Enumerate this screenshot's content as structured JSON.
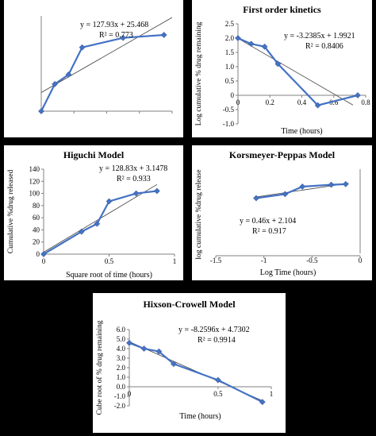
{
  "chart_data": [
    {
      "id": "zero",
      "type": "line",
      "title": "",
      "xlabel": "",
      "ylabel": "",
      "x": [
        0,
        0.083,
        0.167,
        0.25,
        0.5,
        0.75
      ],
      "y": [
        0,
        37,
        50,
        87,
        100,
        104
      ],
      "trendline": {
        "slope": 127.93,
        "intercept": 25.468
      },
      "equation": "y = 127.93x + 25.468",
      "r2": "R² = 0.773",
      "xlim": [
        0,
        0.8
      ],
      "ylim": [
        0,
        130
      ],
      "grid": false,
      "legend": "none"
    },
    {
      "id": "first",
      "type": "line",
      "title": "First order kinetics",
      "xlabel": "Time (hours)",
      "ylabel": "Log cumulative % drug remaining",
      "x": [
        0,
        0.083,
        0.167,
        0.25,
        0.5,
        0.75
      ],
      "y": [
        2.0,
        1.8,
        1.7,
        1.1,
        -0.35,
        0.0
      ],
      "trendline": {
        "slope": -3.2385,
        "intercept": 1.9921
      },
      "equation": "y = -3.2385x + 1.9921",
      "r2": "R² = 0.8406",
      "xlim": [
        0,
        0.8
      ],
      "ylim": [
        -1.0,
        2.5
      ],
      "xticks": [
        "0",
        "0.2",
        "0.4",
        "0.6",
        "0.8"
      ],
      "yticks": [
        "-1.0",
        "-0.5",
        "0",
        "0.5",
        "1.0",
        "1.5",
        "2.0",
        "2.5"
      ],
      "grid": false,
      "legend": "none"
    },
    {
      "id": "higuchi",
      "type": "line",
      "title": "Higuchi Model",
      "xlabel": "Square root of time (hours)",
      "ylabel": "Cumulative %drug released",
      "x": [
        0,
        0.289,
        0.408,
        0.5,
        0.707,
        0.866
      ],
      "y": [
        0,
        37,
        50,
        87,
        100,
        104
      ],
      "trendline": {
        "slope": 128.83,
        "intercept": 3.1478
      },
      "equation": "y = 128.83x + 3.1478",
      "r2": "R² = 0.933",
      "xlim": [
        0,
        1
      ],
      "ylim": [
        0,
        140
      ],
      "xticks": [
        "0",
        "0.5",
        "1"
      ],
      "yticks": [
        "0",
        "20",
        "40",
        "60",
        "80",
        "100",
        "120",
        "140"
      ],
      "grid": false,
      "legend": "none"
    },
    {
      "id": "korsmeyer",
      "type": "line",
      "title": "Korsmeyer-Peppas Model",
      "xlabel": "Log Time (hours)",
      "ylabel": "log cumulative %drug release",
      "x": [
        -1.08,
        -0.78,
        -0.6,
        -0.3,
        -0.15
      ],
      "y": [
        1.57,
        1.7,
        1.94,
        2.0,
        2.02
      ],
      "trendline": {
        "slope": 0.46,
        "intercept": 2.104
      },
      "equation": "y = 0.46x + 2.104",
      "r2": "R² = 0.917",
      "xlim": [
        -1.5,
        0
      ],
      "ylim": [
        -0.2,
        2.5
      ],
      "xticks": [
        "-1.5",
        "-1",
        "-0.5",
        "0"
      ],
      "grid": false,
      "legend": "none"
    },
    {
      "id": "hixson",
      "type": "line",
      "title": "Hixson-Crowell Model",
      "xlabel": "Time (hours)",
      "ylabel": "Cube root of % drug remaining",
      "x": [
        0,
        0.083,
        0.167,
        0.25,
        0.5,
        0.75
      ],
      "y": [
        4.6,
        4.0,
        3.7,
        2.4,
        0.7,
        -1.6
      ],
      "trendline": {
        "slope": -8.2596,
        "intercept": 4.7302
      },
      "equation": "y = -8.2596x + 4.7302",
      "r2": "R² = 0.9914",
      "xlim": [
        0,
        0.8
      ],
      "ylim": [
        -2.0,
        6.0
      ],
      "xticks": [
        "0",
        "0.5",
        "1"
      ],
      "yticks": [
        "-2.0",
        "-1.0",
        "0.0",
        "1.0",
        "2.0",
        "3.0",
        "4.0",
        "5.0",
        "6.0"
      ],
      "grid": false,
      "legend": "none"
    }
  ]
}
